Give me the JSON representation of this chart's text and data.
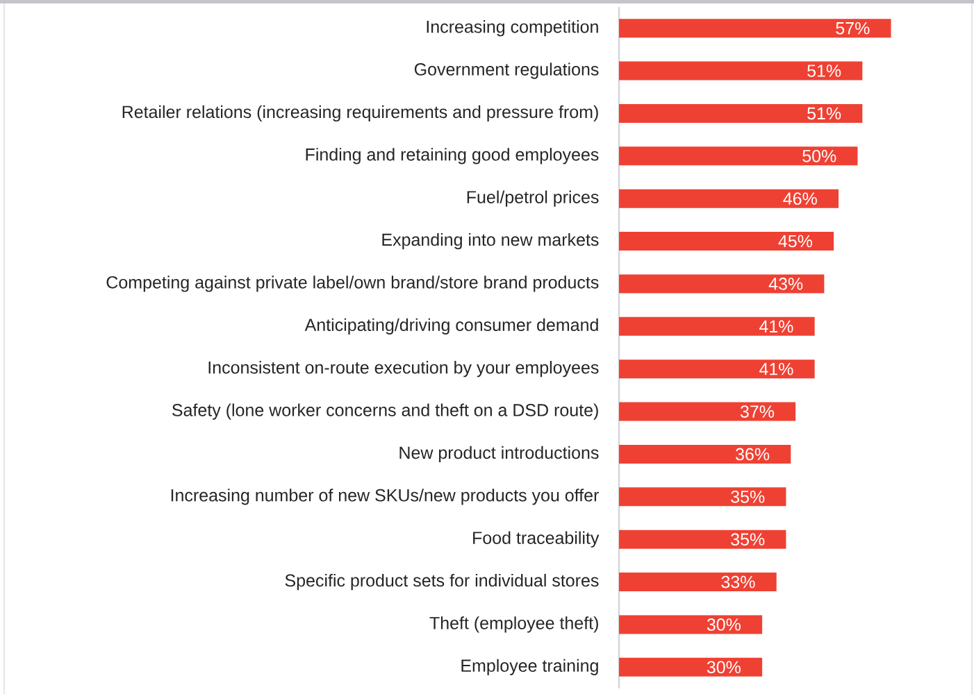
{
  "chart_data": {
    "type": "bar",
    "orientation": "horizontal",
    "categories": [
      "Increasing competition",
      "Government regulations",
      "Retailer relations (increasing requirements and pressure from)",
      "Finding and retaining good employees",
      "Fuel/petrol prices",
      "Expanding into new markets",
      "Competing against private label/own brand/store brand products",
      "Anticipating/driving consumer demand",
      "Inconsistent on-route execution by your employees",
      "Safety (lone worker concerns and theft on a DSD route)",
      "New product introductions",
      "Increasing number of new SKUs/new products you offer",
      "Food traceability",
      "Specific product sets for individual stores",
      "Theft (employee theft)",
      "Employee training"
    ],
    "values": [
      57,
      51,
      51,
      50,
      46,
      45,
      43,
      41,
      41,
      37,
      36,
      35,
      35,
      33,
      30,
      30
    ],
    "value_labels": [
      "57%",
      "51%",
      "51%",
      "50%",
      "46%",
      "45%",
      "43%",
      "41%",
      "41%",
      "37%",
      "36%",
      "35%",
      "35%",
      "33%",
      "30%",
      "30%"
    ],
    "color": "#ef4133"
  }
}
